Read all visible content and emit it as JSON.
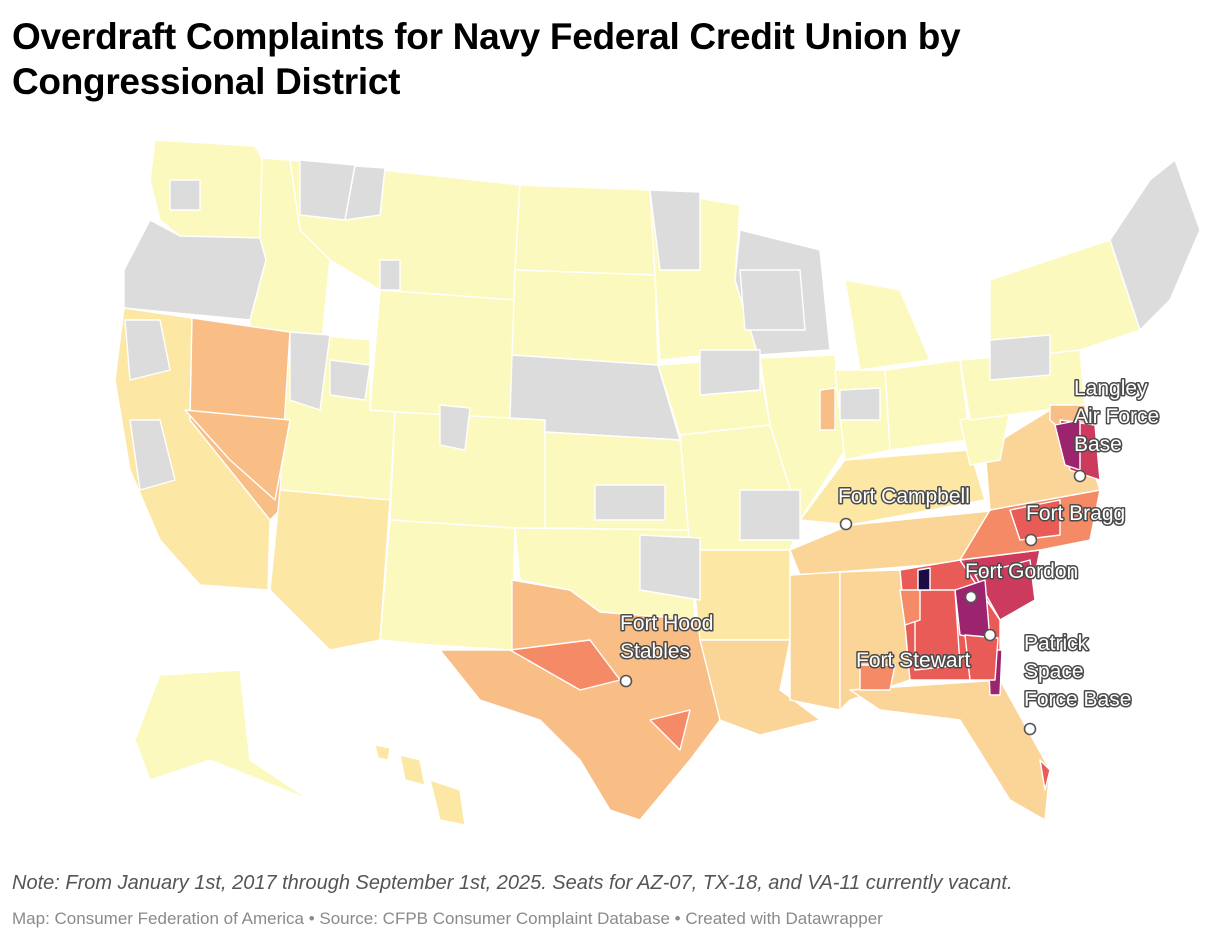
{
  "title": "Overdraft Complaints for Navy Federal Credit Union by Congressional District",
  "note": "Note: From January 1st, 2017 through September 1st, 2025. Seats for AZ-07, TX-18, and VA-11 currently vacant.",
  "byline": {
    "map": "Map: Consumer Federation of America",
    "source": "Source: CFPB Consumer Complaint Database",
    "credit": "Created with Datawrapper",
    "separator": " • "
  },
  "colors": {
    "no_data": "#dcdcdc",
    "scale": [
      "#fcf9be",
      "#fce8a4",
      "#fbd497",
      "#f9bd86",
      "#f48b66",
      "#e85b57",
      "#cc3a5e",
      "#9c246f",
      "#5a1a6b",
      "#1d0b45"
    ],
    "border": "#ffffff",
    "marker_fill": "#ffffff",
    "marker_stroke": "#555555"
  },
  "markers": [
    {
      "id": "langley",
      "lines": [
        "Langley",
        "Air Force",
        "Base"
      ]
    },
    {
      "id": "fort-campbell",
      "lines": [
        "Fort Campbell"
      ]
    },
    {
      "id": "fort-bragg",
      "lines": [
        "Fort Bragg"
      ]
    },
    {
      "id": "fort-gordon",
      "lines": [
        "Fort Gordon"
      ]
    },
    {
      "id": "fort-stewart",
      "lines": [
        "Fort Stewart"
      ]
    },
    {
      "id": "fort-hood",
      "lines": [
        "Fort Hood",
        "Stables"
      ]
    },
    {
      "id": "patrick",
      "lines": [
        "Patrick",
        "Space",
        "Force Base"
      ]
    }
  ]
}
